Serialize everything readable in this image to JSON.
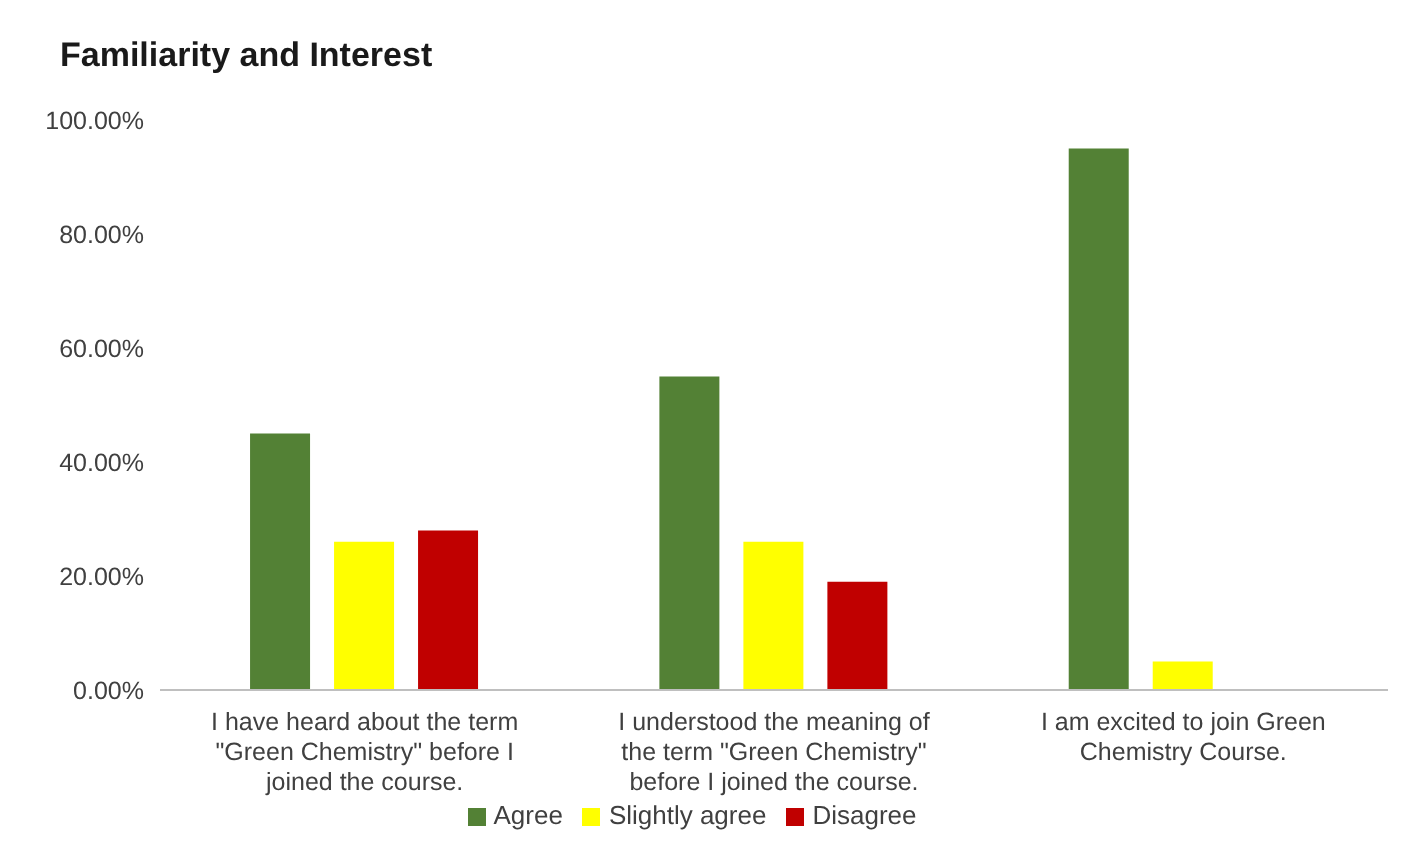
{
  "chart_data": {
    "type": "bar",
    "title": "Familiarity and Interest",
    "categories": [
      "I have heard about the term \"Green Chemistry\" before I joined the course.",
      "I understood the meaning of the term \"Green Chemistry\" before I joined the course.",
      "I am excited to join Green Chemistry Course."
    ],
    "series": [
      {
        "name": "Agree",
        "color": "#538135",
        "values": [
          45,
          55,
          95
        ]
      },
      {
        "name": "Slightly agree",
        "color": "#ffff00",
        "values": [
          26,
          26,
          5
        ]
      },
      {
        "name": "Disagree",
        "color": "#c00000",
        "values": [
          28,
          19,
          0
        ]
      }
    ],
    "ylim": [
      0,
      100
    ],
    "yticks": [
      {
        "value": 0,
        "label": "0.00%"
      },
      {
        "value": 20,
        "label": "20.00%"
      },
      {
        "value": 40,
        "label": "40.00%"
      },
      {
        "value": 60,
        "label": "60.00%"
      },
      {
        "value": 80,
        "label": "80.00%"
      },
      {
        "value": 100,
        "label": "100.00%"
      }
    ],
    "grid": false,
    "legend": "bottom"
  }
}
